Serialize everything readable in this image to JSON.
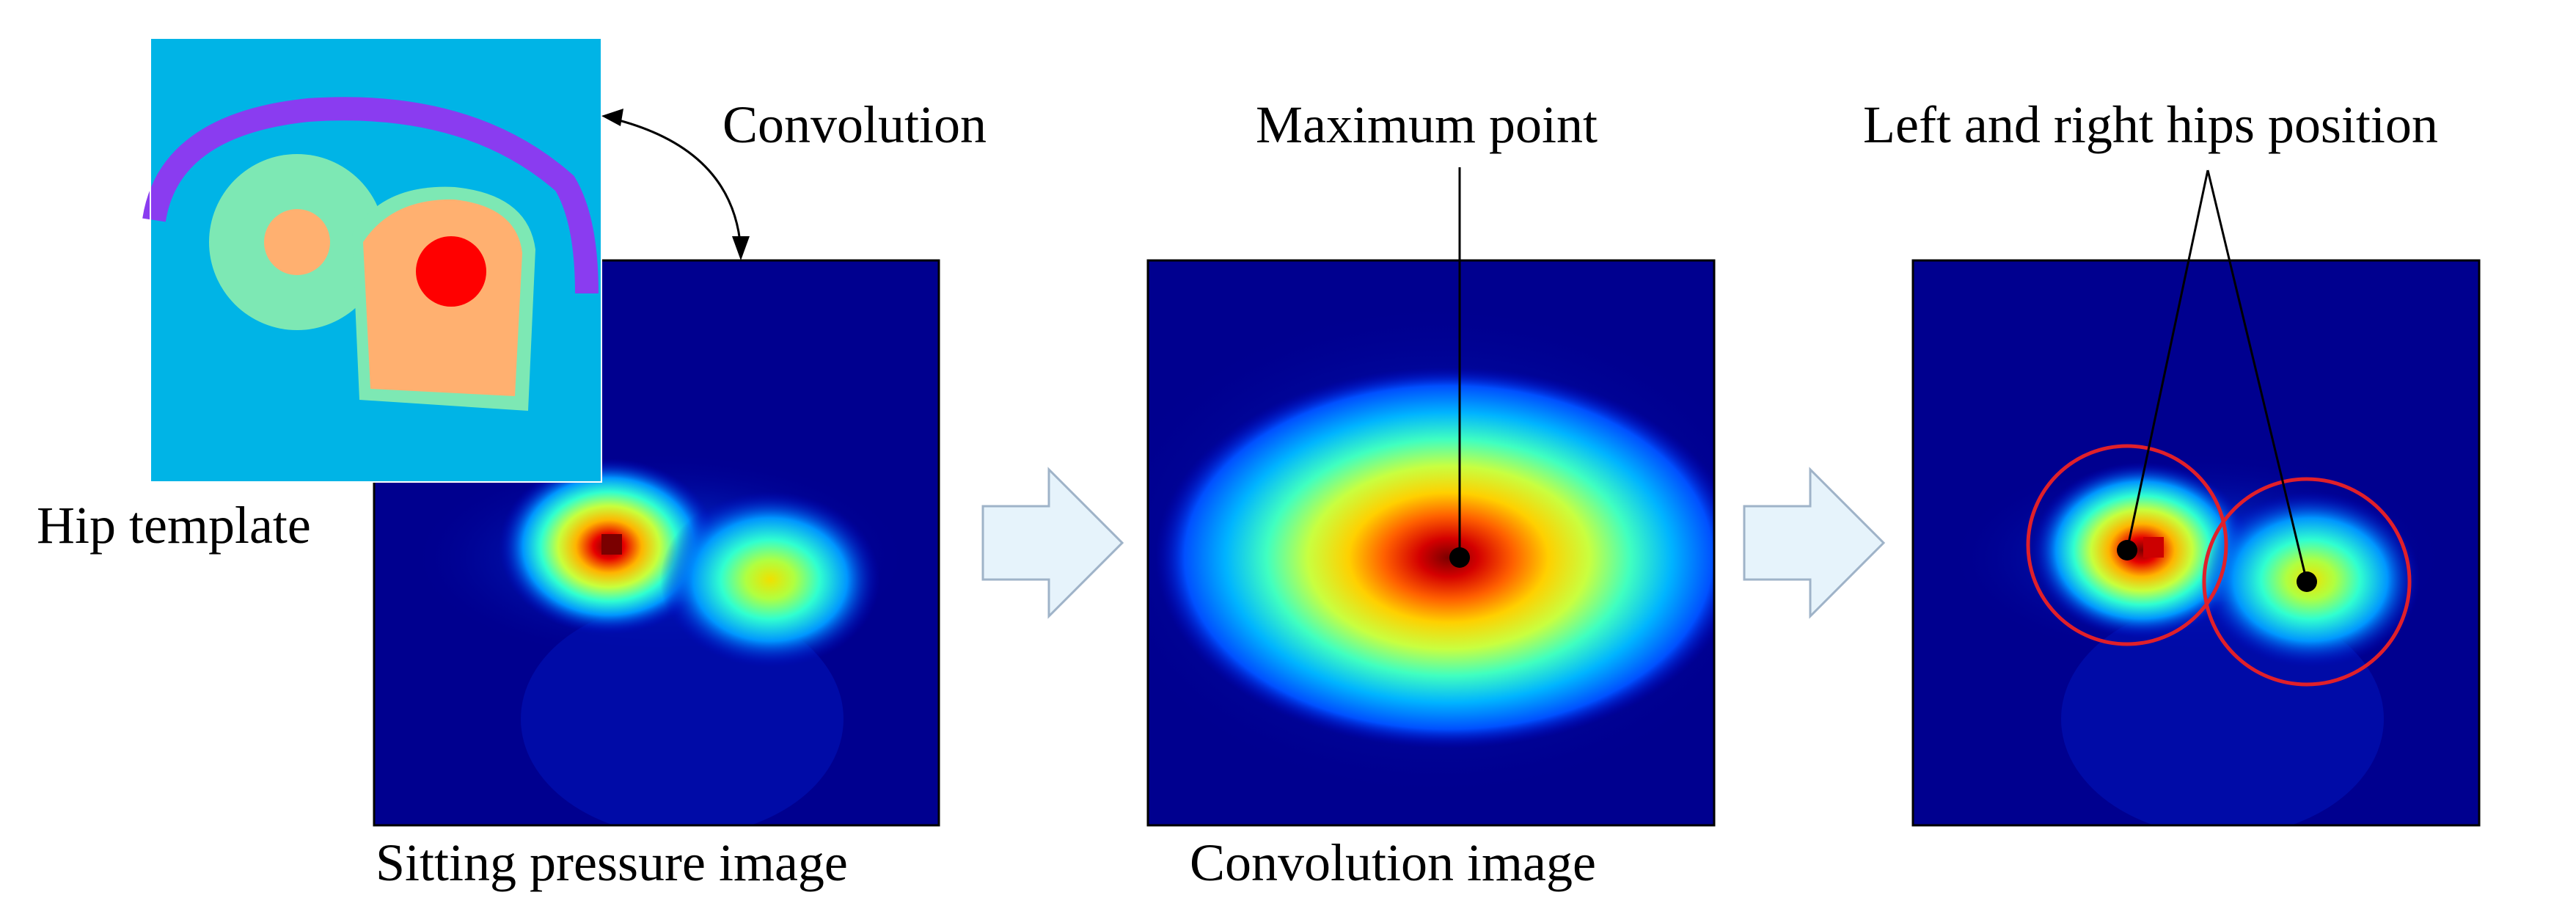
{
  "labels": {
    "convolution": "Convolution",
    "maximum_point": "Maximum point",
    "hips_position": "Left and right hips position",
    "hip_template": "Hip template",
    "sitting_pressure_image": "Sitting pressure image",
    "convolution_image": "Convolution image"
  },
  "colors": {
    "heatmap_bg": "#00008f",
    "template_bg": "#00b4e6",
    "hip_circle": "#e0202a",
    "arrow_fill": "#e6f3fb",
    "arrow_stroke": "#9fb3c8"
  }
}
